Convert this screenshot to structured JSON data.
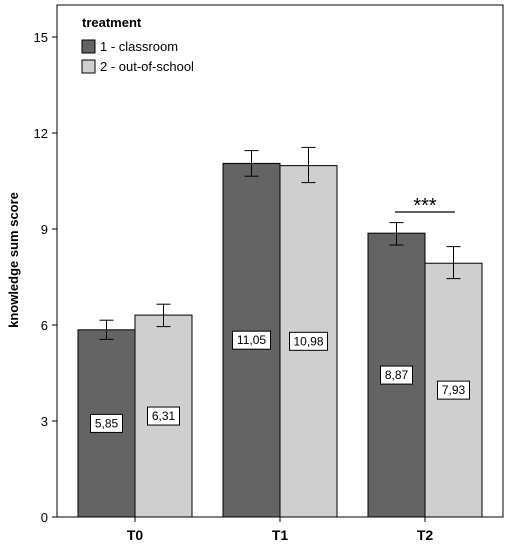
{
  "chart_data": {
    "type": "bar",
    "title": "",
    "xlabel": "",
    "ylabel": "knowledge sum score",
    "categories": [
      "T0",
      "T1",
      "T2"
    ],
    "yticks": [
      0,
      3,
      6,
      9,
      12,
      15
    ],
    "ylim": [
      0,
      16
    ],
    "grid": false,
    "legend": {
      "title": "treatment",
      "position": "top-left"
    },
    "series": [
      {
        "name": "1 - classroom",
        "color": "#646464",
        "values": [
          5.85,
          11.05,
          8.87
        ],
        "labels": [
          "5,85",
          "11,05",
          "8,87"
        ],
        "error_low": [
          5.55,
          10.65,
          8.5
        ],
        "error_high": [
          6.15,
          11.45,
          9.2
        ]
      },
      {
        "name": "2 - out-of-school",
        "color": "#cfcfcf",
        "values": [
          6.31,
          10.98,
          7.93
        ],
        "labels": [
          "6,31",
          "10,98",
          "7,93"
        ],
        "error_low": [
          5.95,
          10.45,
          7.45
        ],
        "error_high": [
          6.65,
          11.55,
          8.45
        ]
      }
    ],
    "annotations": [
      {
        "text": "***",
        "category": "T2"
      }
    ]
  }
}
